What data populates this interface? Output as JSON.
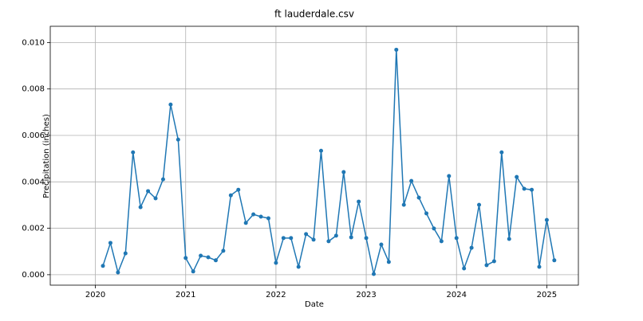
{
  "chart_data": {
    "type": "line",
    "title": "ft lauderdale.csv",
    "xlabel": "Date",
    "ylabel": "Precipitation (inches)",
    "x": [
      "2020-01",
      "2020-02",
      "2020-03",
      "2020-04",
      "2020-05",
      "2020-06",
      "2020-07",
      "2020-08",
      "2020-09",
      "2020-10",
      "2020-11",
      "2020-12",
      "2021-01",
      "2021-02",
      "2021-03",
      "2021-04",
      "2021-05",
      "2021-06",
      "2021-07",
      "2021-08",
      "2021-09",
      "2021-10",
      "2021-11",
      "2021-12",
      "2022-01",
      "2022-02",
      "2022-03",
      "2022-04",
      "2022-05",
      "2022-06",
      "2022-07",
      "2022-08",
      "2022-09",
      "2022-10",
      "2022-11",
      "2022-12",
      "2023-01",
      "2023-02",
      "2023-03",
      "2023-04",
      "2023-05",
      "2023-06",
      "2023-07",
      "2023-08",
      "2023-09",
      "2023-10",
      "2023-11",
      "2023-12",
      "2024-01",
      "2024-02",
      "2024-03",
      "2024-04",
      "2024-05",
      "2024-06",
      "2024-07",
      "2024-08",
      "2024-09",
      "2024-10",
      "2024-11",
      "2024-12",
      "2025-01"
    ],
    "series": [
      {
        "color": "#1f77b4",
        "values": [
          0.00038,
          0.00137,
          0.0001,
          0.00092,
          0.00527,
          0.00291,
          0.0036,
          0.00329,
          0.00411,
          0.00733,
          0.00582,
          0.00072,
          0.00014,
          0.00082,
          0.00075,
          0.00062,
          0.00103,
          0.00342,
          0.00366,
          0.00223,
          0.0026,
          0.0025,
          0.00243,
          0.00051,
          0.00158,
          0.00158,
          0.00034,
          0.00175,
          0.00151,
          0.00534,
          0.00144,
          0.00168,
          0.00442,
          0.00161,
          0.00315,
          0.00158,
          3e-05,
          0.0013,
          0.00055,
          0.00969,
          0.00301,
          0.00404,
          0.00332,
          0.00264,
          0.00199,
          0.00144,
          0.00425,
          0.00158,
          0.00027,
          0.00116,
          0.00301,
          0.00041,
          0.00058,
          0.00527,
          0.00154,
          0.00421,
          0.0037,
          0.00366,
          0.00034,
          0.00236,
          0.00062
        ]
      }
    ],
    "xlim": [
      2019.5,
      2025.35
    ],
    "xticks": [
      2020,
      2021,
      2022,
      2023,
      2024,
      2025
    ],
    "ylim": [
      -0.00045,
      0.0107
    ],
    "yticks": [
      {
        "value": 0,
        "label": "0.000"
      },
      {
        "value": 0.002,
        "label": "0.002"
      },
      {
        "value": 0.004,
        "label": "0.004"
      },
      {
        "value": 0.006,
        "label": "0.006"
      },
      {
        "value": 0.008,
        "label": "0.008"
      },
      {
        "value": 0.01,
        "label": "0.010"
      }
    ],
    "grid": true
  }
}
